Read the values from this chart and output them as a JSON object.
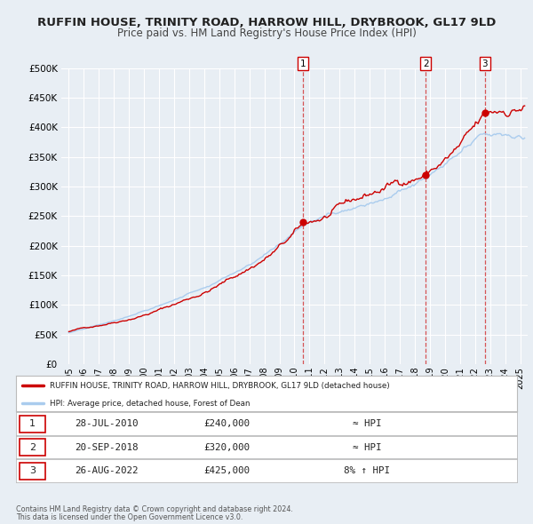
{
  "title": "RUFFIN HOUSE, TRINITY ROAD, HARROW HILL, DRYBROOK, GL17 9LD",
  "subtitle": "Price paid vs. HM Land Registry's House Price Index (HPI)",
  "title_fontsize": 9.5,
  "subtitle_fontsize": 8.5,
  "bg_color": "#e8eef4",
  "plot_bg_color": "#e8eef4",
  "grid_color": "#ffffff",
  "ylim": [
    0,
    500000
  ],
  "yticks": [
    0,
    50000,
    100000,
    150000,
    200000,
    250000,
    300000,
    350000,
    400000,
    450000,
    500000
  ],
  "xlim_start": 1994.5,
  "xlim_end": 2025.5,
  "xticks": [
    1995,
    1996,
    1997,
    1998,
    1999,
    2000,
    2001,
    2002,
    2003,
    2004,
    2005,
    2006,
    2007,
    2008,
    2009,
    2010,
    2011,
    2012,
    2013,
    2014,
    2015,
    2016,
    2017,
    2018,
    2019,
    2020,
    2021,
    2022,
    2023,
    2024,
    2025
  ],
  "sale_color": "#cc0000",
  "hpi_color": "#aaccee",
  "sale_linewidth": 1.0,
  "hpi_linewidth": 1.0,
  "marker_color": "#cc0000",
  "marker_size": 6,
  "sale_label": "RUFFIN HOUSE, TRINITY ROAD, HARROW HILL, DRYBROOK, GL17 9LD (detached house)",
  "hpi_label": "HPI: Average price, detached house, Forest of Dean",
  "transactions": [
    {
      "num": 1,
      "date": "28-JUL-2010",
      "year": 2010.57,
      "price": 240000,
      "hpi_rel": "≈ HPI"
    },
    {
      "num": 2,
      "date": "20-SEP-2018",
      "year": 2018.72,
      "price": 320000,
      "hpi_rel": "≈ HPI"
    },
    {
      "num": 3,
      "date": "26-AUG-2022",
      "year": 2022.65,
      "price": 425000,
      "hpi_rel": "8% ↑ HPI"
    }
  ],
  "footnote1": "Contains HM Land Registry data © Crown copyright and database right 2024.",
  "footnote2": "This data is licensed under the Open Government Licence v3.0."
}
